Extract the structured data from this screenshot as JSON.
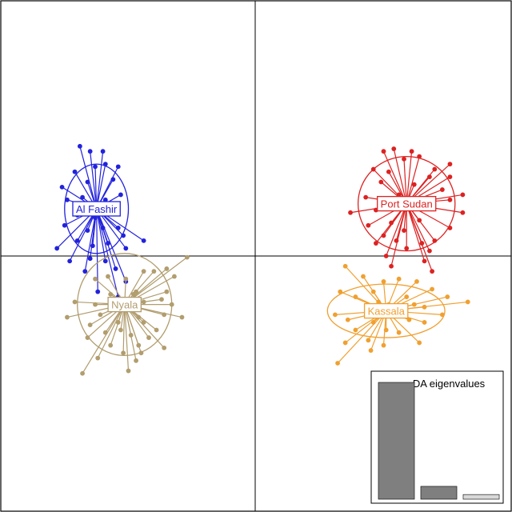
{
  "chart_data": {
    "type": "scatter",
    "subtype": "DAPC scatterplot",
    "xlim": [
      -10,
      10
    ],
    "ylim": [
      -10,
      10
    ],
    "axes_at_zero": true,
    "groups": [
      {
        "name": "Al Fashir",
        "color": "#2222dd",
        "centroid": [
          -6.25,
          1.85
        ],
        "ellipse_radii": [
          1.25,
          1.75
        ],
        "points": [
          [
            -6.9,
            4.3
          ],
          [
            -6.5,
            4.1
          ],
          [
            -6.0,
            4.1
          ],
          [
            -7.1,
            3.3
          ],
          [
            -6.3,
            3.5
          ],
          [
            -5.9,
            3.6
          ],
          [
            -5.4,
            3.5
          ],
          [
            -7.6,
            2.7
          ],
          [
            -6.6,
            2.9
          ],
          [
            -5.6,
            3.0
          ],
          [
            -5.3,
            2.4
          ],
          [
            -7.4,
            2.2
          ],
          [
            -6.8,
            2.3
          ],
          [
            -5.9,
            2.2
          ],
          [
            -5.5,
            1.7
          ],
          [
            -7.0,
            1.6
          ],
          [
            -6.3,
            1.5
          ],
          [
            -7.5,
            1.2
          ],
          [
            -6.6,
            1.0
          ],
          [
            -6.0,
            1.1
          ],
          [
            -5.4,
            1.1
          ],
          [
            -5.2,
            0.8
          ],
          [
            -7.0,
            0.6
          ],
          [
            -6.4,
            0.4
          ],
          [
            -5.8,
            0.5
          ],
          [
            -5.1,
            0.3
          ],
          [
            -4.4,
            0.6
          ],
          [
            -7.8,
            0.3
          ],
          [
            -7.3,
            -0.2
          ],
          [
            -6.5,
            -0.1
          ],
          [
            -5.9,
            -0.2
          ],
          [
            -5.5,
            -0.5
          ],
          [
            -6.7,
            -0.6
          ],
          [
            -6.2,
            -1.4
          ],
          [
            -5.4,
            -1.6
          ],
          [
            -5.1,
            -1.0
          ],
          [
            -5.9,
            1.9
          ],
          [
            -6.8,
            1.9
          ]
        ]
      },
      {
        "name": "Port Sudan",
        "color": "#dd2222",
        "centroid": [
          5.9,
          2.05
        ],
        "ellipse_radii": [
          1.9,
          1.85
        ],
        "points": [
          [
            5.0,
            4.1
          ],
          [
            5.4,
            4.2
          ],
          [
            6.1,
            4.1
          ],
          [
            5.8,
            3.8
          ],
          [
            6.4,
            3.9
          ],
          [
            7.0,
            3.4
          ],
          [
            7.6,
            3.6
          ],
          [
            6.8,
            3.1
          ],
          [
            4.6,
            3.4
          ],
          [
            5.2,
            3.3
          ],
          [
            7.6,
            3.1
          ],
          [
            6.2,
            2.8
          ],
          [
            7.3,
            2.6
          ],
          [
            4.9,
            2.9
          ],
          [
            8.1,
            2.4
          ],
          [
            7.6,
            2.2
          ],
          [
            5.6,
            2.4
          ],
          [
            4.3,
            2.3
          ],
          [
            6.8,
            1.9
          ],
          [
            4.7,
            1.8
          ],
          [
            8.1,
            1.7
          ],
          [
            3.7,
            1.7
          ],
          [
            6.4,
            1.4
          ],
          [
            5.3,
            1.3
          ],
          [
            4.4,
            1.2
          ],
          [
            7.6,
            1.1
          ],
          [
            5.8,
            1.0
          ],
          [
            5.0,
            0.8
          ],
          [
            5.5,
            0.6
          ],
          [
            4.7,
            0.5
          ],
          [
            6.5,
            0.5
          ],
          [
            7.0,
            0.6
          ],
          [
            5.9,
            0.3
          ],
          [
            6.8,
            0.2
          ],
          [
            5.1,
            0.0
          ],
          [
            5.3,
            -0.4
          ],
          [
            6.9,
            -0.6
          ],
          [
            6.6,
            -0.2
          ],
          [
            6.0,
            1.9
          ]
        ]
      },
      {
        "name": "Nyala",
        "color": "#b19d6e",
        "centroid": [
          -5.15,
          -1.9
        ],
        "ellipse_radii": [
          1.85,
          2.0
        ],
        "points": [
          [
            -2.7,
            -0.05
          ],
          [
            -3.5,
            -0.5
          ],
          [
            -4.4,
            -0.6
          ],
          [
            -5.8,
            -0.8
          ],
          [
            -6.3,
            -0.9
          ],
          [
            -4.0,
            -0.6
          ],
          [
            -3.2,
            -0.8
          ],
          [
            -5.1,
            -0.9
          ],
          [
            -5.7,
            -1.5
          ],
          [
            -4.7,
            -1.4
          ],
          [
            -3.5,
            -1.4
          ],
          [
            -7.1,
            -1.8
          ],
          [
            -6.3,
            -1.9
          ],
          [
            -4.4,
            -1.8
          ],
          [
            -3.7,
            -1.7
          ],
          [
            -7.4,
            -2.4
          ],
          [
            -6.1,
            -2.3
          ],
          [
            -5.1,
            -2.1
          ],
          [
            -3.6,
            -2.3
          ],
          [
            -2.9,
            -2.4
          ],
          [
            -6.5,
            -2.7
          ],
          [
            -5.4,
            -2.6
          ],
          [
            -4.4,
            -2.6
          ],
          [
            -3.9,
            -2.9
          ],
          [
            -6.6,
            -3.2
          ],
          [
            -4.9,
            -3.1
          ],
          [
            -4.2,
            -3.2
          ],
          [
            -5.7,
            -3.5
          ],
          [
            -4.6,
            -3.5
          ],
          [
            -3.6,
            -3.6
          ],
          [
            -5.2,
            -3.8
          ],
          [
            -6.2,
            -4.0
          ],
          [
            -4.7,
            -4.1
          ],
          [
            -5.0,
            -4.5
          ],
          [
            -6.8,
            -4.6
          ],
          [
            -4.5,
            -3.8
          ],
          [
            -5.6,
            -2.0
          ],
          [
            -4.6,
            -2.4
          ],
          [
            -5.3,
            -2.9
          ],
          [
            -5.9,
            -3.0
          ],
          [
            -3.3,
            -1.9
          ],
          [
            -4.8,
            -1.5
          ]
        ]
      },
      {
        "name": "Kassala",
        "color": "#f0a030",
        "centroid": [
          5.1,
          -2.15
        ],
        "ellipse_radii": [
          2.3,
          1.05
        ],
        "points": [
          [
            3.5,
            -0.4
          ],
          [
            4.2,
            -0.8
          ],
          [
            5.6,
            -0.9
          ],
          [
            5.0,
            -1.0
          ],
          [
            3.3,
            -1.4
          ],
          [
            6.3,
            -1.0
          ],
          [
            6.9,
            -1.3
          ],
          [
            4.6,
            -1.4
          ],
          [
            5.9,
            -1.6
          ],
          [
            7.5,
            -1.6
          ],
          [
            8.3,
            -1.8
          ],
          [
            3.9,
            -1.6
          ],
          [
            4.4,
            -2.0
          ],
          [
            5.2,
            -1.9
          ],
          [
            6.6,
            -2.0
          ],
          [
            3.1,
            -2.3
          ],
          [
            7.3,
            -2.3
          ],
          [
            3.6,
            -2.5
          ],
          [
            4.6,
            -2.6
          ],
          [
            6.0,
            -2.5
          ],
          [
            6.6,
            -2.6
          ],
          [
            3.9,
            -2.9
          ],
          [
            5.1,
            -2.9
          ],
          [
            5.6,
            -3.0
          ],
          [
            4.4,
            -3.3
          ],
          [
            3.5,
            -3.4
          ],
          [
            5.0,
            -3.5
          ],
          [
            6.4,
            -3.4
          ],
          [
            3.2,
            -4.2
          ],
          [
            4.5,
            -3.7
          ],
          [
            5.1,
            -2.2
          ],
          [
            4.8,
            -1.8
          ],
          [
            5.5,
            -2.3
          ],
          [
            6.2,
            -1.9
          ]
        ]
      }
    ],
    "eigenvalues_inset": {
      "title": "DA eigenvalues",
      "values": [
        100,
        11,
        4
      ],
      "bar_colors": [
        "#7f7f7f",
        "#7f7f7f",
        "#d8d8d8"
      ]
    }
  }
}
